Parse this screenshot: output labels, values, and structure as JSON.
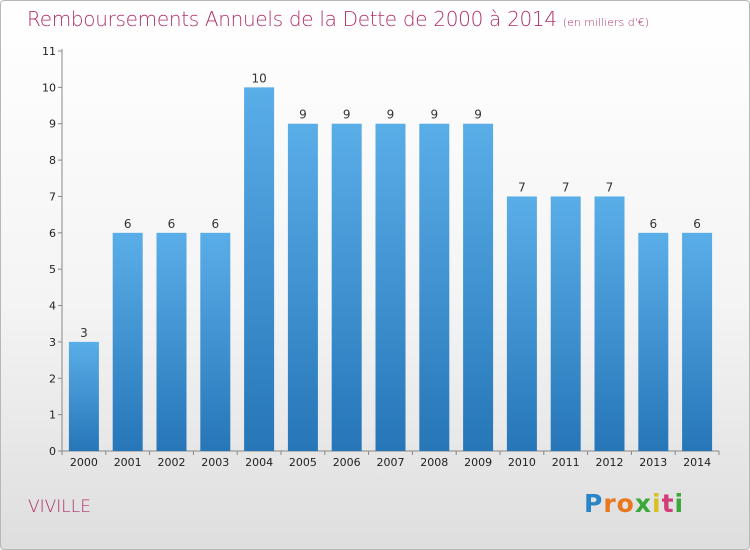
{
  "header": {
    "title": "Remboursements Annuels de la Dette de 2000 à 2014",
    "unit": "(en milliers d'€)"
  },
  "footer": {
    "town": "VIVILLE",
    "logo_letters": [
      "P",
      "r",
      "o",
      "x",
      "i",
      "t",
      "i"
    ],
    "logo_colors": [
      "#2a86c8",
      "#e8781e",
      "#e8781e",
      "#3aa83a",
      "#d8c020",
      "#d33c7a",
      "#3aa83a"
    ]
  },
  "chart_data": {
    "type": "bar",
    "title": "Remboursements Annuels de la Dette de 2000 à 2014",
    "subtitle": "(en milliers d'€)",
    "categories": [
      "2000",
      "2001",
      "2002",
      "2003",
      "2004",
      "2005",
      "2006",
      "2007",
      "2008",
      "2009",
      "2010",
      "2011",
      "2012",
      "2013",
      "2014"
    ],
    "values": [
      3,
      6,
      6,
      6,
      10,
      9,
      9,
      9,
      9,
      9,
      7,
      7,
      7,
      6,
      6
    ],
    "data_labels": [
      "3",
      "6",
      "6",
      "6",
      "10",
      "9",
      "9",
      "9",
      "9",
      "9",
      "7",
      "7",
      "7",
      "6",
      "6"
    ],
    "y_ticks": [
      "0",
      "1",
      "2",
      "3",
      "4",
      "5",
      "6",
      "7",
      "8",
      "9",
      "10",
      "11"
    ],
    "ylim": [
      0,
      11
    ],
    "grid": false,
    "bar_color_top": "#5aaee8",
    "bar_color_bottom": "#2676b8"
  }
}
